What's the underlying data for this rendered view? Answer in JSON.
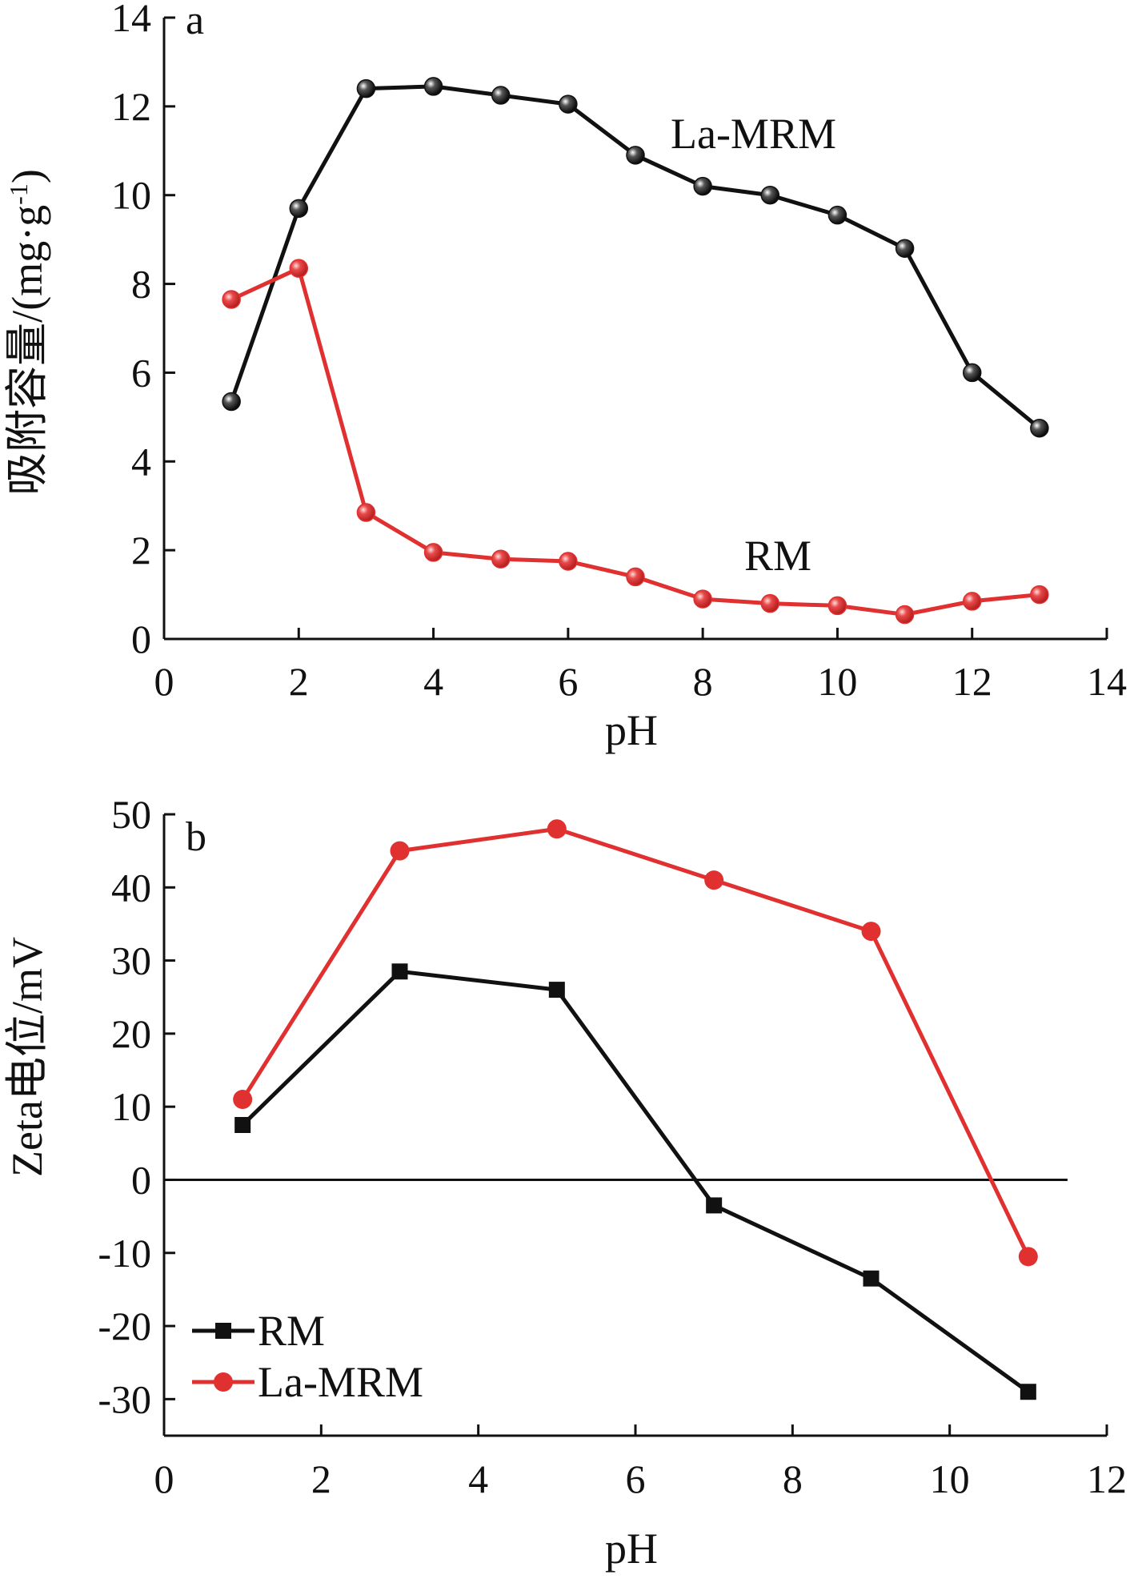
{
  "chart_data": [
    {
      "type": "line",
      "panel_label": "a",
      "xlabel": "pH",
      "ylabel": "吸附容量/(mg·g",
      "ylabel_sup": "-1",
      "ylabel_end": ")",
      "xlim": [
        0,
        14
      ],
      "ylim": [
        0,
        14
      ],
      "xticks": [
        "0",
        "2",
        "4",
        "6",
        "8",
        "10",
        "12",
        "14"
      ],
      "yticks": [
        "0",
        "2",
        "4",
        "6",
        "8",
        "10",
        "12",
        "14"
      ],
      "grid": false,
      "x": [
        1,
        2,
        3,
        4,
        5,
        6,
        7,
        8,
        9,
        10,
        11,
        12,
        13
      ],
      "series": [
        {
          "name": "La-MRM",
          "color": "#111111",
          "marker": "ball",
          "values": [
            5.35,
            9.7,
            12.4,
            12.45,
            12.25,
            12.05,
            10.9,
            10.2,
            10.0,
            9.55,
            8.8,
            6.0,
            4.75
          ]
        },
        {
          "name": "RM",
          "color": "#e03030",
          "marker": "ball",
          "values": [
            7.65,
            8.35,
            2.85,
            1.95,
            1.8,
            1.75,
            1.4,
            0.9,
            0.8,
            0.75,
            0.55,
            0.85,
            1.0
          ]
        }
      ]
    },
    {
      "type": "line",
      "panel_label": "b",
      "xlabel": "pH",
      "ylabel": "Zeta电位/mV",
      "xlim": [
        0,
        12
      ],
      "ylim": [
        -35,
        50
      ],
      "xticks": [
        "0",
        "2",
        "4",
        "6",
        "8",
        "10",
        "12"
      ],
      "yticks": [
        "-30",
        "-20",
        "-10",
        "0",
        "10",
        "20",
        "30",
        "40",
        "50"
      ],
      "grid": false,
      "zero_line": true,
      "legend_position": "bottom-left",
      "x": [
        1,
        3,
        5,
        7,
        9,
        11
      ],
      "series": [
        {
          "name": "RM",
          "color": "#111111",
          "marker": "square",
          "values": [
            7.5,
            28.5,
            26.0,
            -3.5,
            -13.5,
            -29.0
          ]
        },
        {
          "name": "La-MRM",
          "color": "#e03030",
          "marker": "circle",
          "values": [
            11.0,
            45.0,
            48.0,
            41.0,
            34.0,
            -10.5
          ]
        }
      ]
    }
  ]
}
